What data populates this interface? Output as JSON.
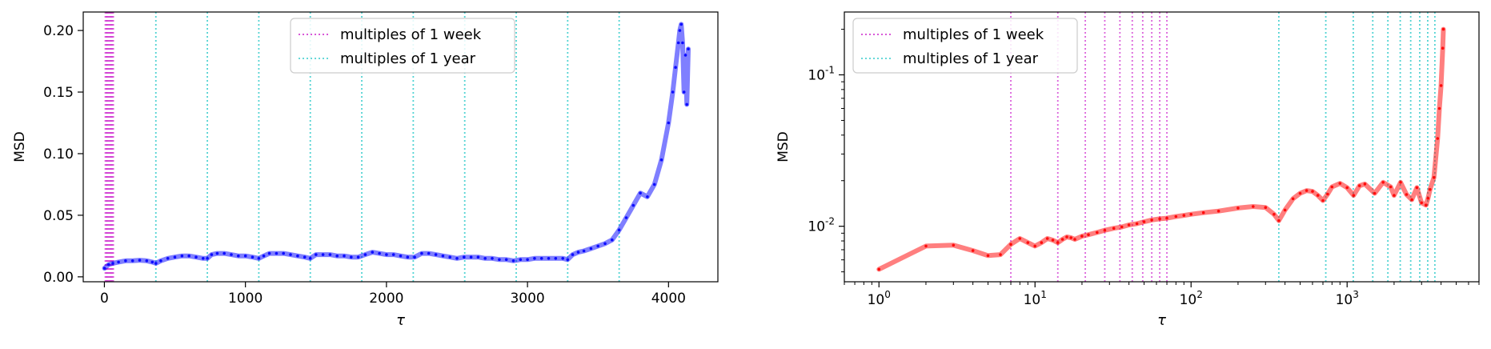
{
  "chart_data": [
    {
      "type": "line",
      "xlabel": "τ",
      "ylabel": "MSD",
      "xscale": "linear",
      "yscale": "linear",
      "xlim": [
        -150,
        4350
      ],
      "ylim": [
        -0.004,
        0.215
      ],
      "xticks": [
        0,
        1000,
        2000,
        3000,
        4000
      ],
      "xticklabels": [
        "0",
        "1000",
        "2000",
        "3000",
        "4000"
      ],
      "yticks": [
        0.0,
        0.05,
        0.1,
        0.15,
        0.2
      ],
      "yticklabels": [
        "0.00",
        "0.05",
        "0.10",
        "0.15",
        "0.20"
      ],
      "legend_position": "top-center",
      "grid": false,
      "vlines": [
        {
          "name": "multiples of 1 week",
          "color": "#cc22cc",
          "values": "7, 14, 21, ... (every 7 up to about 63)"
        },
        {
          "name": "multiples of 1 year",
          "color": "#33cccc",
          "values": [
            365,
            730,
            1095,
            1460,
            1825,
            2190,
            2555,
            2920,
            3285,
            3650
          ]
        }
      ],
      "series": [
        {
          "color": "#0000ff",
          "x": [
            1,
            30,
            60,
            100,
            150,
            200,
            250,
            300,
            340,
            365,
            400,
            450,
            500,
            550,
            600,
            650,
            700,
            730,
            760,
            800,
            850,
            900,
            950,
            1000,
            1050,
            1095,
            1130,
            1170,
            1220,
            1270,
            1320,
            1370,
            1420,
            1460,
            1500,
            1550,
            1600,
            1650,
            1700,
            1750,
            1800,
            1850,
            1900,
            1950,
            2000,
            2050,
            2100,
            2150,
            2200,
            2250,
            2300,
            2350,
            2400,
            2450,
            2500,
            2550,
            2600,
            2650,
            2700,
            2750,
            2800,
            2850,
            2900,
            2950,
            3000,
            3050,
            3100,
            3150,
            3200,
            3250,
            3285,
            3320,
            3360,
            3400,
            3450,
            3500,
            3550,
            3600,
            3650,
            3700,
            3750,
            3800,
            3850,
            3900,
            3950,
            4000,
            4030,
            4050,
            4070,
            4080,
            4090,
            4100,
            4110,
            4120,
            4130,
            4140
          ],
          "y": [
            0.007,
            0.01,
            0.011,
            0.012,
            0.013,
            0.013,
            0.0135,
            0.013,
            0.012,
            0.011,
            0.013,
            0.015,
            0.016,
            0.017,
            0.017,
            0.016,
            0.015,
            0.015,
            0.018,
            0.019,
            0.019,
            0.018,
            0.017,
            0.017,
            0.016,
            0.015,
            0.017,
            0.019,
            0.019,
            0.019,
            0.018,
            0.017,
            0.016,
            0.015,
            0.018,
            0.018,
            0.018,
            0.017,
            0.017,
            0.016,
            0.016,
            0.018,
            0.02,
            0.019,
            0.018,
            0.018,
            0.017,
            0.016,
            0.016,
            0.019,
            0.019,
            0.018,
            0.017,
            0.016,
            0.015,
            0.016,
            0.016,
            0.016,
            0.015,
            0.015,
            0.014,
            0.014,
            0.013,
            0.014,
            0.014,
            0.015,
            0.015,
            0.015,
            0.015,
            0.015,
            0.014,
            0.018,
            0.02,
            0.021,
            0.023,
            0.025,
            0.027,
            0.03,
            0.038,
            0.048,
            0.058,
            0.068,
            0.065,
            0.075,
            0.095,
            0.125,
            0.15,
            0.17,
            0.19,
            0.2,
            0.205,
            0.19,
            0.15,
            0.18,
            0.14,
            0.185
          ]
        }
      ]
    },
    {
      "type": "line",
      "xlabel": "τ",
      "ylabel": "MSD",
      "xscale": "log",
      "yscale": "log",
      "xlim": [
        0.6,
        7000
      ],
      "ylim": [
        0.0043,
        0.26
      ],
      "xticks": [
        1,
        10,
        100,
        1000
      ],
      "xticklabels": [
        "10^0",
        "10^1",
        "10^2",
        "10^3"
      ],
      "yticks": [
        0.01,
        0.1
      ],
      "yticklabels": [
        "10^-2",
        "10^-1"
      ],
      "legend_position": "top-left",
      "grid": false,
      "vlines": [
        {
          "name": "multiples of 1 week",
          "color": "#cc22cc",
          "values": [
            7,
            14,
            21,
            28,
            35,
            42,
            49,
            56,
            63,
            70
          ]
        },
        {
          "name": "multiples of 1 year",
          "color": "#33cccc",
          "values": [
            365,
            730,
            1095,
            1460,
            1825,
            2190,
            2555,
            2920,
            3285,
            3650
          ]
        }
      ],
      "series": [
        {
          "color": "#ff0000",
          "x": [
            1,
            2,
            3,
            4,
            5,
            6,
            7,
            8,
            9,
            10,
            11,
            12,
            13,
            14,
            15,
            16,
            17,
            18,
            20,
            22,
            25,
            28,
            32,
            36,
            40,
            45,
            50,
            56,
            63,
            70,
            80,
            90,
            100,
            120,
            150,
            200,
            250,
            300,
            340,
            365,
            400,
            450,
            500,
            550,
            600,
            650,
            700,
            750,
            800,
            900,
            1000,
            1100,
            1200,
            1300,
            1500,
            1700,
            1900,
            2000,
            2200,
            2400,
            2600,
            2800,
            3000,
            3200,
            3300,
            3400,
            3600,
            3800,
            3900,
            4000,
            4100,
            4140
          ],
          "y": [
            0.0052,
            0.0074,
            0.0075,
            0.0069,
            0.0064,
            0.0065,
            0.0076,
            0.0083,
            0.0078,
            0.0074,
            0.0078,
            0.0083,
            0.0081,
            0.0078,
            0.0082,
            0.0085,
            0.0084,
            0.0082,
            0.0086,
            0.0088,
            0.0091,
            0.0094,
            0.0097,
            0.0099,
            0.0102,
            0.0104,
            0.0107,
            0.011,
            0.0112,
            0.0113,
            0.0116,
            0.0118,
            0.012,
            0.0123,
            0.0126,
            0.0132,
            0.0135,
            0.0133,
            0.012,
            0.0109,
            0.0128,
            0.0152,
            0.0165,
            0.0172,
            0.017,
            0.016,
            0.0148,
            0.0163,
            0.0182,
            0.0192,
            0.018,
            0.016,
            0.0185,
            0.019,
            0.0165,
            0.0195,
            0.0182,
            0.016,
            0.0195,
            0.0162,
            0.015,
            0.018,
            0.0143,
            0.0138,
            0.0153,
            0.0175,
            0.021,
            0.038,
            0.06,
            0.085,
            0.15,
            0.2
          ]
        }
      ]
    }
  ]
}
